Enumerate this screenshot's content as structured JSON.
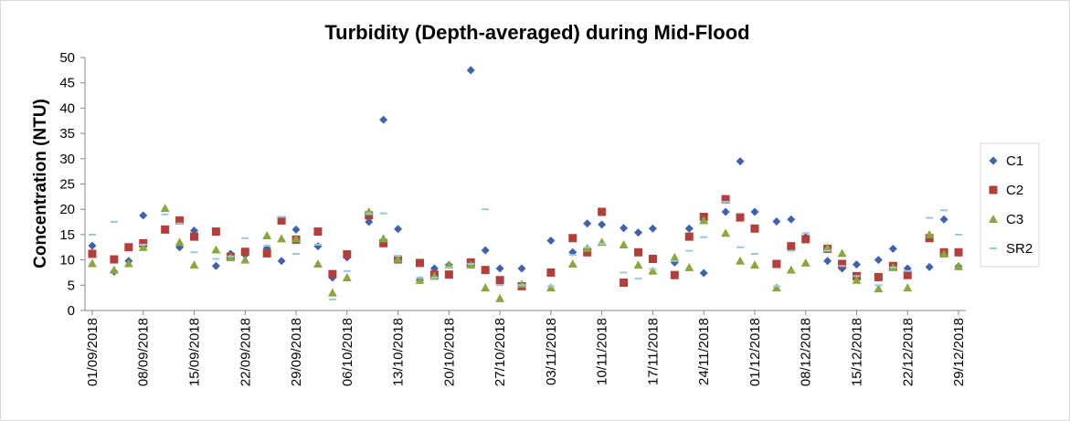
{
  "chart_data": {
    "type": "scatter",
    "title": "Turbidity (Depth-averaged) during Mid-Flood",
    "y_label": "Concentration (NTU)",
    "x": [
      "01/09/2018",
      "04/09/2018",
      "06/09/2018",
      "08/09/2018",
      "11/09/2018",
      "13/09/2018",
      "15/09/2018",
      "18/09/2018",
      "20/09/2018",
      "22/09/2018",
      "25/09/2018",
      "27/09/2018",
      "29/09/2018",
      "02/10/2018",
      "04/10/2018",
      "06/10/2018",
      "09/10/2018",
      "11/10/2018",
      "13/10/2018",
      "16/10/2018",
      "18/10/2018",
      "20/10/2018",
      "23/10/2018",
      "25/10/2018",
      "27/10/2018",
      "30/10/2018",
      "03/11/2018",
      "06/11/2018",
      "08/11/2018",
      "10/11/2018",
      "13/11/2018",
      "15/11/2018",
      "17/11/2018",
      "20/11/2018",
      "22/11/2018",
      "24/11/2018",
      "27/11/2018",
      "29/11/2018",
      "01/12/2018",
      "04/12/2018",
      "06/12/2018",
      "08/12/2018",
      "11/12/2018",
      "13/12/2018",
      "15/12/2018",
      "18/12/2018",
      "20/12/2018",
      "22/12/2018",
      "25/12/2018",
      "27/12/2018",
      "29/12/2018"
    ],
    "series": [
      {
        "name": "C1",
        "color": "#3f62a8",
        "marker": "diamond",
        "values": [
          12.8,
          7.7,
          9.8,
          18.8,
          null,
          12.5,
          15.8,
          8.8,
          11.2,
          11.0,
          12.3,
          9.8,
          16,
          12.7,
          6.5,
          10.5,
          17.5,
          37.7,
          16.1,
          6,
          8.3,
          9,
          47.5,
          11.9,
          8.3,
          8.3,
          13.8,
          11.5,
          17.2,
          17.0,
          16.3,
          15.4,
          16.2,
          9.5,
          16.2,
          7.4,
          19.5,
          29.5,
          19.5,
          17.6,
          18.0,
          14.5,
          9.8,
          8.3,
          9.1,
          10.0,
          12.2,
          8.3,
          8.6,
          18.0,
          8.7
        ]
      },
      {
        "name": "C2",
        "color": "#b13f3b",
        "marker": "square",
        "values": [
          11.2,
          10.1,
          12.5,
          13.3,
          16,
          17.8,
          14.6,
          15.6,
          10.6,
          11.6,
          11.3,
          17.8,
          14,
          15.6,
          7.2,
          11.1,
          18.8,
          13.3,
          10.1,
          9.4,
          7.1,
          7.1,
          9.5,
          8,
          6,
          4.8,
          7.5,
          14.3,
          11.5,
          19.5,
          5.5,
          11.5,
          10.2,
          7,
          14.6,
          18.5,
          22,
          18.4,
          16.2,
          9.2,
          12.7,
          14.1,
          12.2,
          9.2,
          6.8,
          6.6,
          8.8,
          7,
          14.3,
          11.5,
          11.5
        ]
      },
      {
        "name": "C3",
        "color": "#8aa63e",
        "marker": "triangle",
        "values": [
          9.3,
          8,
          9.3,
          12.5,
          20.2,
          13.5,
          9,
          12,
          10.5,
          10,
          14.8,
          14.2,
          14.2,
          9.2,
          3.5,
          6.5,
          19.5,
          14.2,
          10.2,
          6,
          6.8,
          9,
          9,
          4.5,
          2.4,
          5.2,
          4.5,
          9.2,
          12.3,
          13.5,
          13,
          9,
          7.8,
          10.5,
          8.5,
          17.8,
          15.3,
          9.8,
          9,
          4.5,
          8,
          9.4,
          12.4,
          11.3,
          6,
          4.3,
          8.5,
          4.5,
          15,
          11.2,
          8.7
        ]
      },
      {
        "name": "SR2",
        "color": "#99c6e0",
        "marker": "dash",
        "values": [
          15,
          17.5,
          null,
          13,
          19,
          17.2,
          11.5,
          10.2,
          10.7,
          14.3,
          12.8,
          18.5,
          11.2,
          13,
          2.2,
          7.8,
          19.2,
          19.2,
          10.8,
          6.5,
          6.5,
          8.5,
          9.2,
          20,
          5,
          5,
          4.8,
          11,
          12.5,
          13.2,
          7.5,
          6.3,
          8.2,
          9.8,
          11.8,
          14.5,
          21.5,
          12.5,
          11.2,
          4.8,
          11.8,
          15.3,
          11.8,
          8.8,
          6.8,
          5,
          8.5,
          7.8,
          18.3,
          19.8,
          15
        ]
      }
    ],
    "xlim": [
      "31/08/2018",
      "30/12/2018"
    ],
    "xticks": [
      "01/09/2018",
      "08/09/2018",
      "15/09/2018",
      "22/09/2018",
      "29/09/2018",
      "06/10/2018",
      "13/10/2018",
      "20/10/2018",
      "27/10/2018",
      "03/11/2018",
      "10/11/2018",
      "17/11/2018",
      "24/11/2018",
      "01/12/2018",
      "08/12/2018",
      "15/12/2018",
      "22/12/2018",
      "29/12/2018"
    ],
    "ylim": [
      0,
      50
    ],
    "yticks": [
      0,
      5,
      10,
      15,
      20,
      25,
      30,
      35,
      40,
      45,
      50
    ],
    "grid": false,
    "legend": "right"
  }
}
